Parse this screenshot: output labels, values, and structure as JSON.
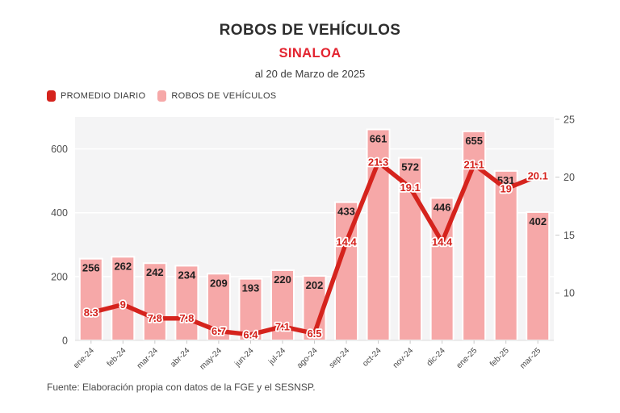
{
  "header": {
    "title": "ROBOS DE VEHÍCULOS",
    "subtitle": "SINALOA",
    "period": "al 20 de Marzo de 2025"
  },
  "legend": {
    "items": [
      {
        "label": "PROMEDIO DIARIO",
        "color": "#d5231d"
      },
      {
        "label": "ROBOS DE VEHÍCULOS",
        "color": "#f6a8a8"
      }
    ]
  },
  "footer": {
    "source": "Fuente: Elaboración propia con datos de la FGE y el SESNSP."
  },
  "colors": {
    "title_text": "#2e2e2e",
    "accent_red": "#e32430",
    "line": "#d5231d",
    "bar": "#f6a8a8",
    "bar_label": "#1f1f1f",
    "plot_bg": "#f4f4f5",
    "grid": "#ffffff",
    "axis_text": "#4d4d4d",
    "x_label_text": "#474747",
    "tick": "#c9c9c9",
    "baseline": "#dcdcdc"
  },
  "chart_data": {
    "type": "bar",
    "combo": "bar series on left axis + line series on right axis",
    "title": "ROBOS DE VEHÍCULOS — SINALOA",
    "subtitle": "al 20 de Marzo de 2025",
    "categories": [
      "ene-24",
      "feb-24",
      "mar-24",
      "abr-24",
      "may-24",
      "jun-24",
      "jul-24",
      "ago-24",
      "sep-24",
      "oct-24",
      "nov-24",
      "dic-24",
      "ene-25",
      "feb-25",
      "mar-25"
    ],
    "series": [
      {
        "name": "ROBOS DE VEHÍCULOS",
        "type": "bar",
        "axis": "left",
        "color": "#f6a8a8",
        "values": [
          256,
          262,
          242,
          234,
          209,
          193,
          220,
          202,
          433,
          661,
          572,
          446,
          655,
          531,
          402
        ]
      },
      {
        "name": "PROMEDIO DIARIO",
        "type": "line",
        "axis": "right",
        "color": "#d5231d",
        "values": [
          8.3,
          9,
          7.8,
          7.8,
          6.7,
          6.4,
          7.1,
          6.5,
          14.4,
          21.3,
          19.1,
          14.4,
          21.1,
          19,
          20.1
        ]
      }
    ],
    "left_axis": {
      "min": 0,
      "max": 700,
      "ticks": [
        0,
        200,
        400,
        600
      ]
    },
    "right_axis": {
      "min": 5.9,
      "max": 25.2,
      "ticks": [
        10,
        15,
        20,
        25
      ]
    },
    "grid": "horizontal white gridlines on light gray plot background",
    "legend_position": "top-left",
    "data_labels": true,
    "x_label_rotation": -45
  }
}
